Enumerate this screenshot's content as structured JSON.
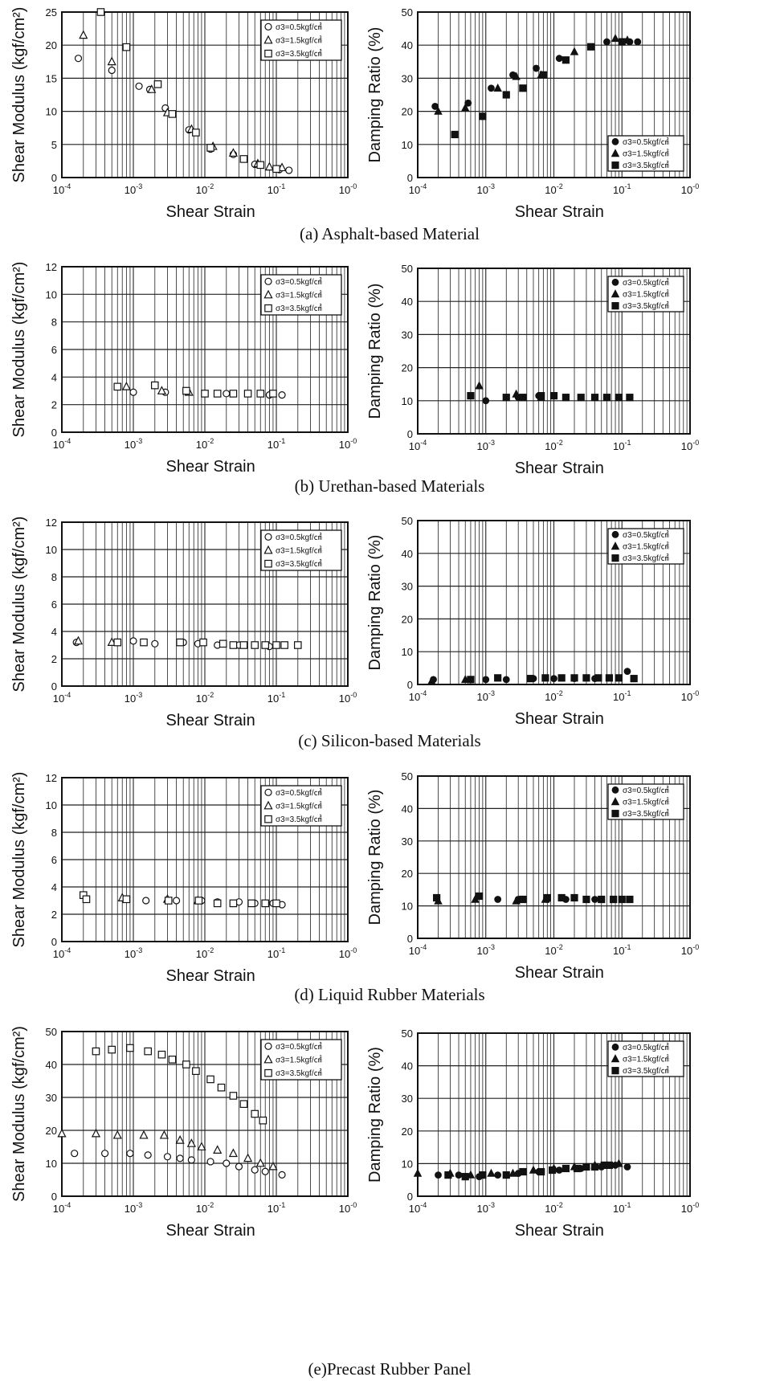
{
  "chart_data": [
    {
      "type": "scatter",
      "panel": "a",
      "quantity": "modulus",
      "caption": "(a) Asphalt-based Material",
      "xlabel": "Shear Strain",
      "ylabel": "Shear Modulus (kgf/cm²)",
      "xscale": "log",
      "xlim": [
        0.0001,
        1
      ],
      "ylim": [
        0,
        25
      ],
      "yticks": [
        0,
        5,
        10,
        15,
        20,
        25
      ],
      "grid": true,
      "legend_position": "top-right",
      "series": [
        {
          "name": "σ3=0.5kgf/㎠",
          "marker": "open-circle",
          "x": [
            0.00017,
            0.0005,
            0.0012,
            0.0017,
            0.0028,
            0.006,
            0.012,
            0.025,
            0.05,
            0.11,
            0.15
          ],
          "y": [
            18,
            16.2,
            13.8,
            13.3,
            10.5,
            7.2,
            4.3,
            3.5,
            2.0,
            1.2,
            1.1
          ]
        },
        {
          "name": "σ3=1.5kgf/㎠",
          "marker": "open-triangle",
          "x": [
            0.0002,
            0.0005,
            0.0018,
            0.003,
            0.0065,
            0.013,
            0.025,
            0.055,
            0.08,
            0.12
          ],
          "y": [
            21.5,
            17.5,
            13.3,
            9.8,
            7.3,
            4.7,
            3.7,
            2.1,
            1.6,
            1.5
          ]
        },
        {
          "name": "σ3=3.5kgf/㎠",
          "marker": "open-square",
          "x": [
            0.00035,
            0.0008,
            0.0022,
            0.0035,
            0.0075,
            0.012,
            0.035,
            0.06,
            0.1
          ],
          "y": [
            25,
            19.7,
            14.1,
            9.6,
            6.8,
            4.5,
            2.8,
            1.9,
            1.3
          ]
        }
      ]
    },
    {
      "type": "scatter",
      "panel": "a",
      "quantity": "damping",
      "xlabel": "Shear Strain",
      "ylabel": "Damping Ratio (%)",
      "xscale": "log",
      "xlim": [
        0.0001,
        1
      ],
      "ylim": [
        0,
        50
      ],
      "yticks": [
        0,
        10,
        20,
        30,
        40,
        50
      ],
      "grid": true,
      "legend_position": "bottom-right",
      "series": [
        {
          "name": "σ3=0.5kgf/㎠",
          "marker": "filled-circle",
          "x": [
            0.00018,
            0.00055,
            0.0012,
            0.0025,
            0.0055,
            0.012,
            0.035,
            0.06,
            0.13,
            0.17
          ],
          "y": [
            21.5,
            22.5,
            27,
            31,
            33,
            36,
            39.5,
            41,
            41,
            41
          ]
        },
        {
          "name": "σ3=1.5kgf/㎠",
          "marker": "filled-triangle",
          "x": [
            0.0002,
            0.0005,
            0.0015,
            0.0028,
            0.0065,
            0.02,
            0.08,
            0.12
          ],
          "y": [
            20,
            21,
            27,
            30.5,
            31,
            38,
            42,
            41.5
          ]
        },
        {
          "name": "σ3=3.5kgf/㎠",
          "marker": "filled-square",
          "x": [
            0.00035,
            0.0009,
            0.002,
            0.0035,
            0.007,
            0.015,
            0.035,
            0.1
          ],
          "y": [
            13,
            18.5,
            25,
            27,
            31,
            35.5,
            39.5,
            41
          ]
        }
      ]
    },
    {
      "type": "scatter",
      "panel": "b",
      "quantity": "modulus",
      "caption": "(b) Urethan-based Materials",
      "xlabel": "Shear Strain",
      "ylabel": "Shear Modulus (kgf/cm²)",
      "xscale": "log",
      "xlim": [
        0.0001,
        1
      ],
      "ylim": [
        0,
        12
      ],
      "yticks": [
        0,
        2,
        4,
        6,
        8,
        10,
        12
      ],
      "grid": true,
      "legend_position": "top-right",
      "series": [
        {
          "name": "σ3=0.5kgf/㎠",
          "marker": "open-circle",
          "x": [
            0.001,
            0.0028,
            0.0055,
            0.01,
            0.02,
            0.04,
            0.08,
            0.12
          ],
          "y": [
            2.9,
            2.9,
            3.0,
            2.8,
            2.8,
            2.8,
            2.7,
            2.7
          ]
        },
        {
          "name": "σ3=1.5kgf/㎠",
          "marker": "open-triangle",
          "x": [
            0.0008,
            0.0025,
            0.006
          ],
          "y": [
            3.3,
            3.0,
            2.9
          ]
        },
        {
          "name": "σ3=3.5kgf/㎠",
          "marker": "open-square",
          "x": [
            0.0006,
            0.002,
            0.0055,
            0.01,
            0.015,
            0.025,
            0.04,
            0.06,
            0.09
          ],
          "y": [
            3.3,
            3.4,
            3.0,
            2.8,
            2.8,
            2.8,
            2.8,
            2.8,
            2.8
          ]
        }
      ]
    },
    {
      "type": "scatter",
      "panel": "b",
      "quantity": "damping",
      "xlabel": "Shear Strain",
      "ylabel": "Damping Ratio (%)",
      "xscale": "log",
      "xlim": [
        0.0001,
        1
      ],
      "ylim": [
        0,
        50
      ],
      "yticks": [
        0,
        10,
        20,
        30,
        40,
        50
      ],
      "grid": true,
      "legend_position": "top-right",
      "series": [
        {
          "name": "σ3=0.5kgf/㎠",
          "marker": "filled-circle",
          "x": [
            0.001,
            0.003,
            0.006,
            0.015
          ],
          "y": [
            10,
            11,
            11.5,
            11
          ]
        },
        {
          "name": "σ3=1.5kgf/㎠",
          "marker": "filled-triangle",
          "x": [
            0.0008,
            0.0028,
            0.0065
          ],
          "y": [
            14.5,
            12,
            11
          ]
        },
        {
          "name": "σ3=3.5kgf/㎠",
          "marker": "filled-square",
          "x": [
            0.0006,
            0.002,
            0.0035,
            0.0065,
            0.01,
            0.015,
            0.025,
            0.04,
            0.06,
            0.09,
            0.13
          ],
          "y": [
            11.5,
            11,
            11,
            11.5,
            11.5,
            11,
            11,
            11,
            11,
            11,
            11
          ]
        }
      ]
    },
    {
      "type": "scatter",
      "panel": "c",
      "quantity": "modulus",
      "caption": "(c) Silicon-based Materials",
      "xlabel": "Shear Strain",
      "ylabel": "Shear Modulus (kgf/cm²)",
      "xscale": "log",
      "xlim": [
        0.0001,
        1
      ],
      "ylim": [
        0,
        12
      ],
      "yticks": [
        0,
        2,
        4,
        6,
        8,
        10,
        12
      ],
      "grid": true,
      "legend_position": "top-right",
      "series": [
        {
          "name": "σ3=0.5kgf/㎠",
          "marker": "open-circle",
          "x": [
            0.00016,
            0.001,
            0.002,
            0.005,
            0.008,
            0.015,
            0.03,
            0.08
          ],
          "y": [
            3.2,
            3.3,
            3.1,
            3.2,
            3.1,
            3.0,
            3.0,
            2.9
          ]
        },
        {
          "name": "σ3=1.5kgf/㎠",
          "marker": "open-triangle",
          "x": [
            0.00017,
            0.0005
          ],
          "y": [
            3.3,
            3.2
          ]
        },
        {
          "name": "σ3=3.5kgf/㎠",
          "marker": "open-square",
          "x": [
            0.0006,
            0.0014,
            0.0045,
            0.0095,
            0.018,
            0.025,
            0.035,
            0.05,
            0.07,
            0.1,
            0.13,
            0.2
          ],
          "y": [
            3.2,
            3.2,
            3.2,
            3.2,
            3.1,
            3.0,
            3.0,
            3.0,
            3.0,
            3.0,
            3.0,
            3.0
          ]
        }
      ]
    },
    {
      "type": "scatter",
      "panel": "c",
      "quantity": "damping",
      "xlabel": "Shear Strain",
      "ylabel": "Damping Ratio (%)",
      "xscale": "log",
      "xlim": [
        0.0001,
        1
      ],
      "ylim": [
        0,
        50
      ],
      "yticks": [
        0,
        10,
        20,
        30,
        40,
        50
      ],
      "grid": true,
      "legend_position": "top-right",
      "series": [
        {
          "name": "σ3=0.5kgf/㎠",
          "marker": "filled-circle",
          "x": [
            0.00017,
            0.001,
            0.002,
            0.005,
            0.01,
            0.02,
            0.04,
            0.12
          ],
          "y": [
            1.5,
            1.5,
            1.5,
            1.8,
            1.8,
            1.8,
            1.8,
            4.0
          ]
        },
        {
          "name": "σ3=1.5kgf/㎠",
          "marker": "filled-triangle",
          "x": [
            0.00016,
            0.0005
          ],
          "y": [
            1.0,
            1.5
          ]
        },
        {
          "name": "σ3=3.5kgf/㎠",
          "marker": "filled-square",
          "x": [
            0.0006,
            0.0015,
            0.0045,
            0.0075,
            0.013,
            0.02,
            0.03,
            0.045,
            0.065,
            0.09,
            0.15
          ],
          "y": [
            1.5,
            2.0,
            1.8,
            2.0,
            2.0,
            2.0,
            2.0,
            2.0,
            2.0,
            2.0,
            1.8
          ]
        }
      ]
    },
    {
      "type": "scatter",
      "panel": "d",
      "quantity": "modulus",
      "caption": "(d) Liquid Rubber Materials",
      "xlabel": "Shear Strain",
      "ylabel": "Shear Modulus (kgf/cm²)",
      "xscale": "log",
      "xlim": [
        0.0001,
        1
      ],
      "ylim": [
        0,
        12
      ],
      "yticks": [
        0,
        2,
        4,
        6,
        8,
        10,
        12
      ],
      "grid": true,
      "legend_position": "top-right",
      "series": [
        {
          "name": "σ3=0.5kgf/㎠",
          "marker": "open-circle",
          "x": [
            0.0008,
            0.0015,
            0.004,
            0.009,
            0.015,
            0.03,
            0.05,
            0.09,
            0.12
          ],
          "y": [
            3.1,
            3.0,
            3.0,
            3.0,
            2.9,
            2.9,
            2.8,
            2.8,
            2.7
          ]
        },
        {
          "name": "σ3=1.5kgf/㎠",
          "marker": "open-triangle",
          "x": [
            0.0007,
            0.003,
            0.008
          ],
          "y": [
            3.2,
            3.1,
            3.0
          ]
        },
        {
          "name": "σ3=3.5kgf/㎠",
          "marker": "open-square",
          "x": [
            0.0002,
            0.00022,
            0.0008,
            0.0031,
            0.0082,
            0.015,
            0.025,
            0.045,
            0.07,
            0.1
          ],
          "y": [
            3.4,
            3.1,
            3.1,
            3.0,
            3.0,
            2.8,
            2.8,
            2.8,
            2.8,
            2.8
          ]
        }
      ]
    },
    {
      "type": "scatter",
      "panel": "d",
      "quantity": "damping",
      "xlabel": "Shear Strain",
      "ylabel": "Damping Ratio (%)",
      "xscale": "log",
      "xlim": [
        0.0001,
        1
      ],
      "ylim": [
        0,
        50
      ],
      "yticks": [
        0,
        10,
        20,
        30,
        40,
        50
      ],
      "grid": true,
      "legend_position": "top-right",
      "series": [
        {
          "name": "σ3=0.5kgf/㎠",
          "marker": "filled-circle",
          "x": [
            0.0015,
            0.003,
            0.008,
            0.015,
            0.04,
            0.1
          ],
          "y": [
            12,
            12,
            12,
            12,
            12,
            12
          ]
        },
        {
          "name": "σ3=1.5kgf/㎠",
          "marker": "filled-triangle",
          "x": [
            0.0002,
            0.0007,
            0.0028,
            0.0075
          ],
          "y": [
            11.5,
            12,
            11.5,
            12
          ]
        },
        {
          "name": "σ3=3.5kgf/㎠",
          "marker": "filled-square",
          "x": [
            0.00019,
            0.0008,
            0.0035,
            0.008,
            0.013,
            0.02,
            0.03,
            0.05,
            0.075,
            0.1,
            0.13
          ],
          "y": [
            12.5,
            13,
            12,
            12.5,
            12.5,
            12.5,
            12,
            12,
            12,
            12,
            12
          ]
        }
      ]
    },
    {
      "type": "scatter",
      "panel": "e",
      "quantity": "modulus",
      "caption": "(e)Precast Rubber Panel",
      "xlabel": "Shear Strain",
      "ylabel": "Shear Modulus (kgf/cm²)",
      "xscale": "log",
      "xlim": [
        0.0001,
        1
      ],
      "ylim": [
        0,
        50
      ],
      "yticks": [
        0,
        10,
        20,
        30,
        40,
        50
      ],
      "grid": true,
      "legend_position": "top-right",
      "series": [
        {
          "name": "σ3=0.5kgf/㎠",
          "marker": "open-circle",
          "x": [
            0.00015,
            0.0004,
            0.0009,
            0.0016,
            0.003,
            0.0045,
            0.0065,
            0.012,
            0.02,
            0.03,
            0.05,
            0.07,
            0.12
          ],
          "y": [
            13,
            13,
            13,
            12.5,
            12,
            11.5,
            11,
            10.5,
            10,
            9,
            8,
            7.5,
            6.5
          ]
        },
        {
          "name": "σ3=1.5kgf/㎠",
          "marker": "open-triangle",
          "x": [
            0.0001,
            0.0003,
            0.0006,
            0.0014,
            0.0027,
            0.0045,
            0.0065,
            0.009,
            0.015,
            0.025,
            0.04,
            0.06,
            0.09
          ],
          "y": [
            19,
            19,
            18.5,
            18.5,
            18.5,
            17,
            16,
            15,
            14,
            13,
            11.5,
            10,
            9
          ]
        },
        {
          "name": "σ3=3.5kgf/㎠",
          "marker": "open-square",
          "x": [
            0.0003,
            0.0005,
            0.0009,
            0.0016,
            0.0025,
            0.0035,
            0.0055,
            0.0075,
            0.012,
            0.017,
            0.025,
            0.035,
            0.05,
            0.065
          ],
          "y": [
            44,
            44.5,
            45,
            44,
            43,
            41.5,
            40,
            38,
            35.5,
            33,
            30.5,
            28,
            25,
            23
          ]
        }
      ]
    },
    {
      "type": "scatter",
      "panel": "e",
      "quantity": "damping",
      "xlabel": "Shear Strain",
      "ylabel": "Damping Ratio (%)",
      "xscale": "log",
      "xlim": [
        0.0001,
        1
      ],
      "ylim": [
        0,
        50
      ],
      "yticks": [
        0,
        10,
        20,
        30,
        40,
        50
      ],
      "grid": true,
      "legend_position": "top-right",
      "series": [
        {
          "name": "σ3=0.5kgf/㎠",
          "marker": "filled-circle",
          "x": [
            0.0002,
            0.0004,
            0.0008,
            0.0015,
            0.003,
            0.006,
            0.012,
            0.025,
            0.05,
            0.08,
            0.12
          ],
          "y": [
            6.5,
            6.5,
            6,
            6.5,
            7,
            7.5,
            8,
            8.5,
            9,
            9.5,
            9
          ]
        },
        {
          "name": "σ3=1.5kgf/㎠",
          "marker": "filled-triangle",
          "x": [
            0.0001,
            0.0003,
            0.0006,
            0.0012,
            0.0025,
            0.005,
            0.01,
            0.02,
            0.04,
            0.09
          ],
          "y": [
            7,
            7,
            6.5,
            7,
            7,
            8,
            8.5,
            9,
            9.5,
            10
          ]
        },
        {
          "name": "σ3=3.5kgf/㎠",
          "marker": "filled-square",
          "x": [
            0.00028,
            0.0005,
            0.0009,
            0.002,
            0.0035,
            0.0065,
            0.0095,
            0.015,
            0.022,
            0.03,
            0.04,
            0.055,
            0.065
          ],
          "y": [
            6.5,
            6,
            6.5,
            6.5,
            7.5,
            7.5,
            8,
            8.5,
            8.5,
            9,
            9,
            9.5,
            9.5
          ]
        }
      ]
    }
  ]
}
